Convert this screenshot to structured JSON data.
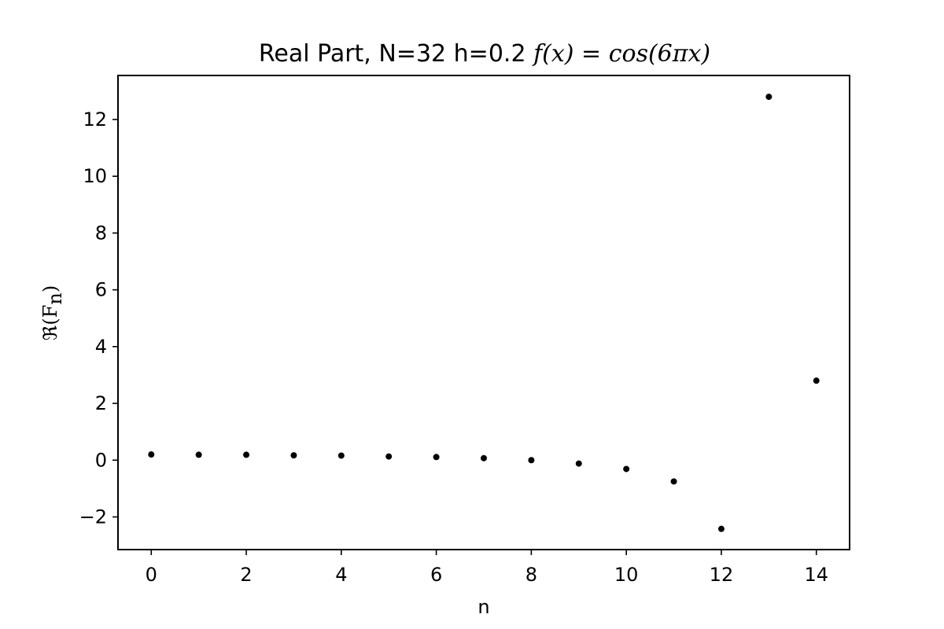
{
  "chart_data": {
    "type": "scatter",
    "title_prefix": "Real Part, N=32  h=0.2 ",
    "title_math": "f(x) = cos(6πx)",
    "xlabel": "n",
    "ylabel_prefix": "ℜ(F",
    "ylabel_sub": "n",
    "ylabel_suffix": ")",
    "xlim": [
      -0.7,
      14.7
    ],
    "ylim": [
      -3.15,
      13.55
    ],
    "xticks": [
      0,
      2,
      4,
      6,
      8,
      10,
      12,
      14
    ],
    "yticks": [
      -2,
      0,
      2,
      4,
      6,
      8,
      10,
      12
    ],
    "x": [
      0,
      1,
      2,
      3,
      4,
      5,
      6,
      7,
      8,
      9,
      10,
      11,
      12,
      13,
      14
    ],
    "y": [
      0.2,
      0.19,
      0.19,
      0.17,
      0.16,
      0.13,
      0.11,
      0.07,
      0.0,
      -0.12,
      -0.31,
      -0.75,
      -2.42,
      12.8,
      2.8
    ],
    "grid": false,
    "marker_color": "#000000"
  }
}
